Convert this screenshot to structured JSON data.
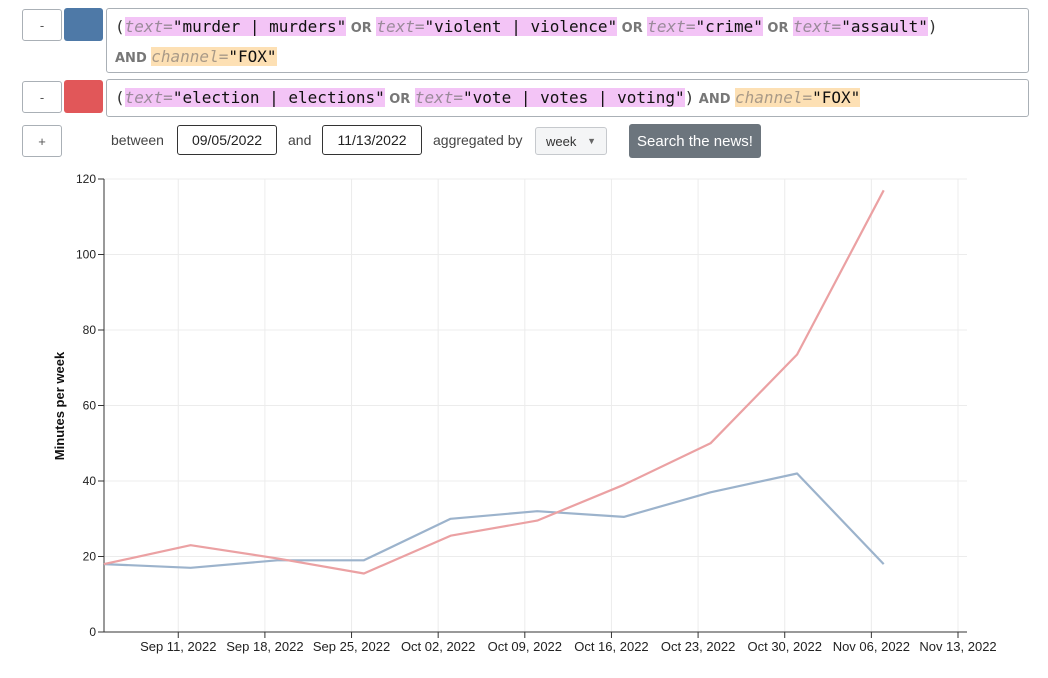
{
  "queries": [
    {
      "remove_label": "-",
      "color": "#4e79a7",
      "tokens": [
        {
          "t": "(",
          "c": "paren"
        },
        {
          "t": "text=",
          "c": "kw"
        },
        {
          "t": "\"murder | murders\"",
          "c": "val-pink"
        },
        {
          "t": " OR ",
          "c": "op"
        },
        {
          "t": "text=",
          "c": "kw"
        },
        {
          "t": "\"violent | violence\"",
          "c": "val-pink"
        },
        {
          "t": " OR ",
          "c": "op"
        },
        {
          "t": "text=",
          "c": "kw"
        },
        {
          "t": "\"crime\"",
          "c": "val-pink"
        },
        {
          "t": " OR ",
          "c": "op"
        },
        {
          "t": "text=",
          "c": "kw"
        },
        {
          "t": "\"assault\"",
          "c": "val-pink"
        },
        {
          "t": ")",
          "c": "paren"
        },
        {
          "t": "BR",
          "c": "br"
        },
        {
          "t": "AND ",
          "c": "op"
        },
        {
          "t": "channel=",
          "c": "ch"
        },
        {
          "t": "\"FOX\"",
          "c": "val-orange"
        }
      ]
    },
    {
      "remove_label": "-",
      "color": "#e15759",
      "tokens": [
        {
          "t": "(",
          "c": "paren"
        },
        {
          "t": "text=",
          "c": "kw"
        },
        {
          "t": "\"election | elections\"",
          "c": "val-pink"
        },
        {
          "t": " OR ",
          "c": "op"
        },
        {
          "t": "text=",
          "c": "kw"
        },
        {
          "t": "\"vote | votes | voting\"",
          "c": "val-pink"
        },
        {
          "t": ")",
          "c": "paren"
        },
        {
          "t": " AND ",
          "c": "op"
        },
        {
          "t": "channel=",
          "c": "ch"
        },
        {
          "t": "\"FOX\"",
          "c": "val-orange"
        }
      ]
    }
  ],
  "controls": {
    "add_label": "+",
    "between_label": "between",
    "start_date": "09/05/2022",
    "and_label": "and",
    "end_date": "11/13/2022",
    "aggregated_label": "aggregated by",
    "aggregation": "week",
    "search_button": "Search the news!"
  },
  "chart_data": {
    "type": "line",
    "xlabel": "",
    "ylabel": "Minutes per week",
    "ylim": [
      0,
      120
    ],
    "yticks": [
      0,
      20,
      40,
      60,
      80,
      100,
      120
    ],
    "xlim": [
      "2022-09-05",
      "2022-11-13"
    ],
    "xticks": [
      "Sep 11, 2022",
      "Sep 18, 2022",
      "Sep 25, 2022",
      "Oct 02, 2022",
      "Oct 09, 2022",
      "Oct 16, 2022",
      "Oct 23, 2022",
      "Oct 30, 2022",
      "Nov 06, 2022",
      "Nov 13, 2022"
    ],
    "xtick_dates": [
      "2022-09-11",
      "2022-09-18",
      "2022-09-25",
      "2022-10-02",
      "2022-10-09",
      "2022-10-16",
      "2022-10-23",
      "2022-10-30",
      "2022-11-06",
      "2022-11-13"
    ],
    "x": [
      "2022-09-05",
      "2022-09-12",
      "2022-09-19",
      "2022-09-26",
      "2022-10-03",
      "2022-10-10",
      "2022-10-17",
      "2022-10-24",
      "2022-10-31",
      "2022-11-07"
    ],
    "grid": true,
    "series": [
      {
        "color": "#9cb3cc",
        "values": [
          18,
          17,
          19,
          19,
          30,
          32,
          30.5,
          37,
          42,
          18
        ]
      },
      {
        "color": "#eba1a3",
        "values": [
          18,
          23,
          19.5,
          15.5,
          25.5,
          29.5,
          39,
          50,
          73.5,
          117
        ]
      }
    ]
  }
}
